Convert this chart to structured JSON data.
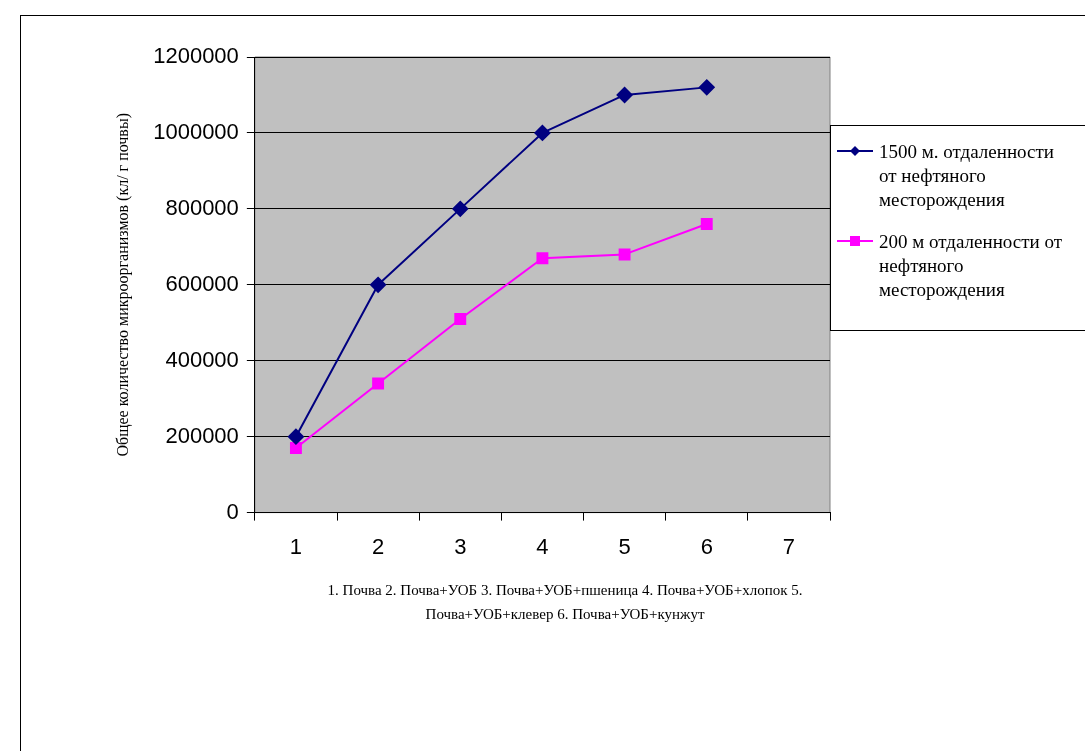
{
  "chart_data": {
    "type": "line",
    "ylabel": "Общее количество микроорганизмов (кл/ г почвы)",
    "categories": [
      "1",
      "2",
      "3",
      "4",
      "5",
      "6",
      "7"
    ],
    "series": [
      {
        "name": "1500 м. отдаленности от нефтяного месторождения",
        "color": "#000080",
        "marker": "diamond",
        "values": [
          200000,
          600000,
          800000,
          1000000,
          1100000,
          1120000,
          null
        ]
      },
      {
        "name": "200 м отдаленности от нефтяного месторождения",
        "color": "#ff00ff",
        "marker": "square",
        "values": [
          170000,
          340000,
          510000,
          670000,
          680000,
          760000,
          null
        ]
      }
    ],
    "ylim": [
      0,
      1200000
    ],
    "yticks": [
      0,
      200000,
      400000,
      600000,
      800000,
      1000000,
      1200000
    ],
    "grid": "y",
    "legend": "right",
    "annotations": [
      "1. Почва 2. Почва+УОБ 3. Почва+УОБ+пшеница 4. Почва+УОБ+хлопок 5. Почва+УОБ+клевер 6. Почва+УОБ+кунжут"
    ]
  }
}
